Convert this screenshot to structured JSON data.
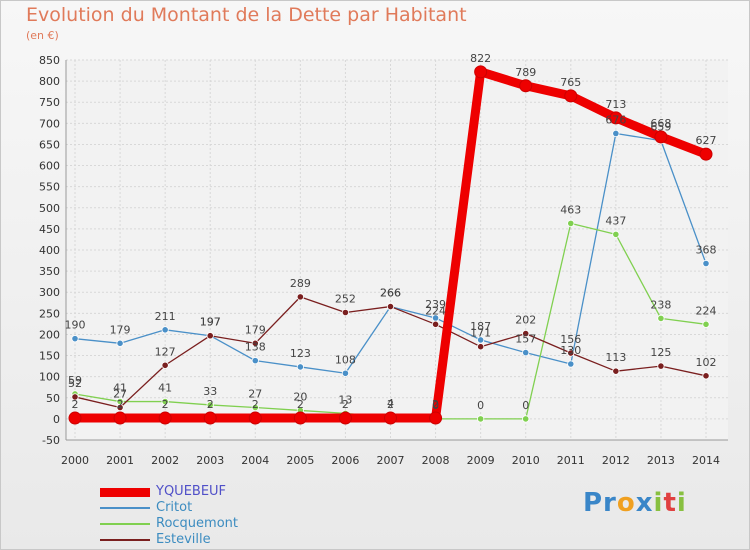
{
  "chart_data": {
    "type": "line",
    "title": "Evolution du Montant de la Dette par Habitant",
    "ylabel": "(en €)",
    "categories": [
      "2000",
      "2001",
      "2002",
      "2003",
      "2004",
      "2005",
      "2006",
      "2007",
      "2008",
      "2009",
      "2010",
      "2011",
      "2012",
      "2013",
      "2014"
    ],
    "ylim": [
      -50,
      850
    ],
    "yticks": [
      -50,
      0,
      50,
      100,
      150,
      200,
      250,
      300,
      350,
      400,
      450,
      500,
      550,
      600,
      650,
      700,
      750,
      800,
      850
    ],
    "grid": true,
    "legend": "bottom-left",
    "series": [
      {
        "name": "YQUEBEUF",
        "color": "#ee0000",
        "values": [
          2,
          2,
          2,
          2,
          2,
          2,
          2,
          2,
          2,
          822,
          789,
          765,
          713,
          668,
          627
        ]
      },
      {
        "name": "Critot",
        "color": "#4a90c8",
        "values": [
          190,
          179,
          211,
          197,
          138,
          123,
          108,
          266,
          239,
          187,
          157,
          130,
          676,
          659,
          368
        ]
      },
      {
        "name": "Rocquemont",
        "color": "#80d050",
        "values": [
          59,
          41,
          41,
          33,
          27,
          20,
          13,
          4,
          0,
          0,
          0,
          463,
          437,
          238,
          224
        ]
      },
      {
        "name": "Esteville",
        "color": "#7a1f1f",
        "values": [
          52,
          27,
          127,
          197,
          179,
          289,
          252,
          266,
          224,
          171,
          202,
          156,
          113,
          125,
          102
        ]
      }
    ]
  },
  "logo": {
    "p1": "Pr",
    "o": "o",
    "x": "x",
    "i": "i",
    "t": "t",
    "i2": "i"
  }
}
